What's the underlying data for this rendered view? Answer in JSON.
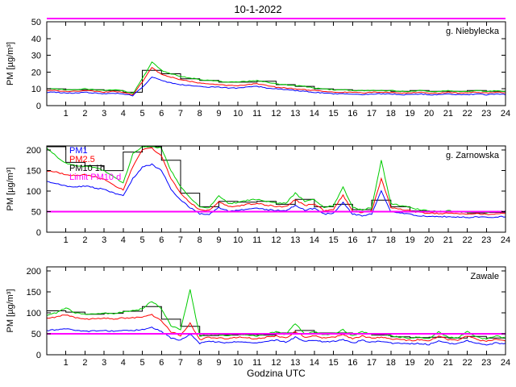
{
  "figure": {
    "title": "10-1-2022",
    "xlabel": "Godzina UTC",
    "background": "#ffffff"
  },
  "chart_data": [
    {
      "type": "line",
      "station": "g. Niebylecka",
      "ylabel": "PM [µg/m³]",
      "xlim": [
        0,
        24
      ],
      "ylim": [
        0,
        50
      ],
      "yticks": [
        0,
        10,
        20,
        30,
        40,
        50
      ],
      "xticks": [
        1,
        2,
        3,
        4,
        5,
        6,
        7,
        8,
        9,
        10,
        11,
        12,
        13,
        14,
        15,
        16,
        17,
        18,
        19,
        20,
        21,
        22,
        23,
        24
      ],
      "x_step": 0.5,
      "limit": {
        "name": "Limit PM10 d",
        "value": 50,
        "color": "#ff00ff"
      },
      "series": [
        {
          "id": "pm10-1h",
          "name": "PM10 1h",
          "type": "step",
          "color": "#000000",
          "values": [
            10,
            9.5,
            9.5,
            9,
            8,
            21,
            19,
            16,
            15,
            14,
            14,
            14.5,
            12.5,
            11.5,
            10,
            9.5,
            9,
            9,
            8.5,
            9,
            8.5,
            8.5,
            9,
            8.5
          ]
        },
        {
          "id": "pm1",
          "name": "PM1",
          "color": "#0000ff",
          "values": [
            8,
            8,
            7.5,
            7.5,
            8,
            7.5,
            7,
            7.5,
            7,
            6,
            11,
            17,
            15,
            13.5,
            12.5,
            12,
            11.5,
            11,
            11,
            10.5,
            10.5,
            11,
            11.5,
            10.5,
            10,
            9.5,
            9,
            8.5,
            8,
            7.5,
            7,
            7,
            7,
            6.5,
            7,
            7,
            7,
            6.5,
            6.5,
            7,
            6.5,
            6.5,
            7,
            6.5,
            6.5,
            7,
            6.5,
            7,
            6.5
          ]
        },
        {
          "id": "pm2-5",
          "name": "PM2.5",
          "color": "#ff0000",
          "values": [
            9,
            9,
            8.5,
            8.5,
            9,
            8.5,
            8,
            8.5,
            8,
            6.5,
            14,
            23,
            18.5,
            17,
            15.5,
            14.5,
            13.5,
            13,
            12.5,
            12,
            12,
            12.5,
            13,
            12,
            11,
            10.5,
            10,
            9.5,
            9,
            8.5,
            8,
            8,
            8,
            7.5,
            8,
            8,
            8,
            7.5,
            7.5,
            8,
            7.5,
            7.5,
            8,
            7.5,
            7.5,
            8,
            7.5,
            8,
            7.5
          ]
        },
        {
          "id": "pm10",
          "name": "PM10",
          "color": "#00cc00",
          "values": [
            10,
            10,
            9.5,
            9.5,
            10,
            9.5,
            9,
            9.5,
            9,
            7,
            16,
            26,
            21,
            19,
            17.5,
            16.5,
            15.5,
            15,
            14.5,
            14,
            14,
            14.5,
            15,
            14,
            13,
            12.5,
            12,
            11.5,
            10.5,
            10,
            9.5,
            9.5,
            9,
            9,
            9,
            9,
            9,
            8.5,
            8.5,
            9,
            8.5,
            8.5,
            9,
            8.5,
            8.5,
            9,
            8.5,
            9,
            8.5
          ]
        }
      ]
    },
    {
      "type": "line",
      "station": "g. Zarnowska",
      "ylabel": "PM [µg/m³]",
      "xlim": [
        0,
        24
      ],
      "ylim": [
        0,
        210
      ],
      "yticks": [
        0,
        50,
        100,
        150,
        200
      ],
      "xticks": [
        1,
        2,
        3,
        4,
        5,
        6,
        7,
        8,
        9,
        10,
        11,
        12,
        13,
        14,
        15,
        16,
        17,
        18,
        19,
        20,
        21,
        22,
        23,
        24
      ],
      "x_step": 0.5,
      "limit": {
        "name": "Limit PM10 d",
        "value": 50,
        "color": "#ff00ff"
      },
      "legend": [
        {
          "label": "PM1",
          "color": "#0000ff"
        },
        {
          "label": "PM2.5",
          "color": "#ff0000"
        },
        {
          "label": "PM10 1h",
          "color": "#000000"
        },
        {
          "label": "Limit PM10 d",
          "color": "#ff00ff"
        }
      ],
      "series": [
        {
          "id": "pm10-1h",
          "name": "PM10 1h",
          "type": "step",
          "color": "#000000",
          "values": [
            208,
            170,
            162,
            150,
            195,
            208,
            175,
            95,
            62,
            75,
            73,
            75,
            68,
            80,
            62,
            68,
            55,
            78,
            62,
            52,
            50,
            49,
            47,
            48
          ]
        },
        {
          "id": "pm1",
          "name": "PM1",
          "color": "#0000ff",
          "values": [
            125,
            118,
            112,
            110,
            112,
            108,
            104,
            95,
            88,
            130,
            158,
            165,
            150,
            105,
            78,
            60,
            45,
            44,
            60,
            52,
            53,
            57,
            58,
            55,
            53,
            52,
            65,
            54,
            58,
            44,
            47,
            72,
            44,
            40,
            44,
            100,
            50,
            47,
            44,
            40,
            38,
            37,
            38,
            37,
            36,
            37,
            36,
            37,
            38
          ]
        },
        {
          "id": "pm2-5",
          "name": "PM2.5",
          "color": "#ff0000",
          "values": [
            150,
            146,
            140,
            138,
            140,
            135,
            128,
            115,
            103,
            160,
            200,
            205,
            185,
            130,
            95,
            72,
            55,
            53,
            75,
            62,
            63,
            68,
            70,
            66,
            63,
            62,
            80,
            65,
            70,
            52,
            56,
            90,
            52,
            48,
            52,
            130,
            60,
            56,
            52,
            48,
            46,
            45,
            46,
            45,
            43,
            45,
            43,
            45,
            46
          ]
        },
        {
          "id": "pm10",
          "name": "PM10",
          "color": "#00cc00",
          "values": [
            205,
            185,
            168,
            162,
            160,
            158,
            150,
            135,
            120,
            190,
            208,
            208,
            205,
            150,
            110,
            85,
            62,
            60,
            90,
            70,
            72,
            78,
            80,
            75,
            72,
            70,
            95,
            75,
            80,
            60,
            65,
            110,
            60,
            55,
            60,
            175,
            70,
            65,
            60,
            55,
            52,
            50,
            52,
            50,
            48,
            50,
            48,
            50,
            52
          ]
        }
      ]
    },
    {
      "type": "line",
      "station": "Zawale",
      "ylabel": "PM [µg/m³]",
      "xlim": [
        0,
        24
      ],
      "ylim": [
        0,
        210
      ],
      "yticks": [
        0,
        50,
        100,
        150,
        200
      ],
      "xticks": [
        1,
        2,
        3,
        4,
        5,
        6,
        7,
        8,
        9,
        10,
        11,
        12,
        13,
        14,
        15,
        16,
        17,
        18,
        19,
        20,
        21,
        22,
        23,
        24
      ],
      "x_step": 0.5,
      "limit": {
        "name": "Limit PM10 d",
        "value": 50,
        "color": "#ff00ff"
      },
      "series": [
        {
          "id": "pm10-1h",
          "name": "PM10 1h",
          "type": "step",
          "color": "#000000",
          "values": [
            105,
            102,
            97,
            99,
            104,
            115,
            85,
            68,
            46,
            47,
            48,
            47,
            52,
            58,
            52,
            52,
            50,
            47,
            43,
            41,
            42,
            40,
            44,
            40
          ]
        },
        {
          "id": "pm1",
          "name": "PM1",
          "color": "#0000ff",
          "values": [
            58,
            60,
            63,
            58,
            56,
            57,
            58,
            56,
            58,
            58,
            60,
            66,
            55,
            40,
            34,
            50,
            27,
            32,
            30,
            28,
            32,
            30,
            28,
            32,
            35,
            30,
            42,
            32,
            35,
            30,
            32,
            36,
            28,
            34,
            30,
            32,
            28,
            27,
            26,
            27,
            24,
            34,
            27,
            26,
            34,
            27,
            24,
            28,
            26
          ]
        },
        {
          "id": "pm2-5",
          "name": "PM2.5",
          "color": "#ff0000",
          "values": [
            88,
            90,
            96,
            88,
            85,
            86,
            88,
            85,
            88,
            88,
            90,
            96,
            80,
            55,
            46,
            75,
            36,
            42,
            40,
            38,
            42,
            40,
            38,
            42,
            45,
            40,
            55,
            42,
            45,
            40,
            42,
            48,
            38,
            45,
            40,
            42,
            38,
            36,
            34,
            36,
            32,
            45,
            36,
            34,
            45,
            36,
            32,
            38,
            34
          ]
        },
        {
          "id": "pm10",
          "name": "PM10",
          "color": "#00cc00",
          "values": [
            95,
            100,
            112,
            100,
            96,
            98,
            100,
            98,
            103,
            105,
            110,
            128,
            110,
            70,
            60,
            155,
            45,
            50,
            48,
            45,
            50,
            48,
            45,
            50,
            55,
            48,
            75,
            50,
            55,
            48,
            50,
            60,
            45,
            55,
            48,
            50,
            45,
            42,
            40,
            42,
            38,
            55,
            42,
            40,
            55,
            42,
            38,
            45,
            40
          ]
        }
      ]
    }
  ]
}
